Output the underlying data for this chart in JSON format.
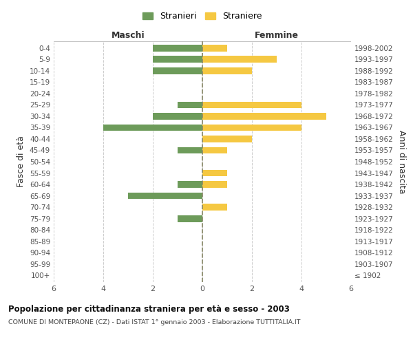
{
  "age_groups": [
    "100+",
    "95-99",
    "90-94",
    "85-89",
    "80-84",
    "75-79",
    "70-74",
    "65-69",
    "60-64",
    "55-59",
    "50-54",
    "45-49",
    "40-44",
    "35-39",
    "30-34",
    "25-29",
    "20-24",
    "15-19",
    "10-14",
    "5-9",
    "0-4"
  ],
  "birth_years": [
    "≤ 1902",
    "1903-1907",
    "1908-1912",
    "1913-1917",
    "1918-1922",
    "1923-1927",
    "1928-1932",
    "1933-1937",
    "1938-1942",
    "1943-1947",
    "1948-1952",
    "1953-1957",
    "1958-1962",
    "1963-1967",
    "1968-1972",
    "1973-1977",
    "1978-1982",
    "1983-1987",
    "1988-1992",
    "1993-1997",
    "1998-2002"
  ],
  "males": [
    0,
    0,
    0,
    0,
    0,
    1,
    0,
    3,
    1,
    0,
    0,
    1,
    0,
    4,
    2,
    1,
    0,
    0,
    2,
    2,
    2
  ],
  "females": [
    0,
    0,
    0,
    0,
    0,
    0,
    1,
    0,
    1,
    1,
    0,
    1,
    2,
    4,
    5,
    4,
    0,
    0,
    2,
    3,
    1
  ],
  "male_color": "#6d9b5a",
  "female_color": "#f5c842",
  "title": "Popolazione per cittadinanza straniera per età e sesso - 2003",
  "subtitle": "COMUNE DI MONTEPAONE (CZ) - Dati ISTAT 1° gennaio 2003 - Elaborazione TUTTITALIA.IT",
  "ylabel_left": "Fasce di età",
  "ylabel_right": "Anni di nascita",
  "xlabel_left": "Maschi",
  "xlabel_right": "Femmine",
  "legend_male": "Stranieri",
  "legend_female": "Straniere",
  "xlim": 6,
  "background_color": "#ffffff",
  "grid_color": "#cccccc"
}
